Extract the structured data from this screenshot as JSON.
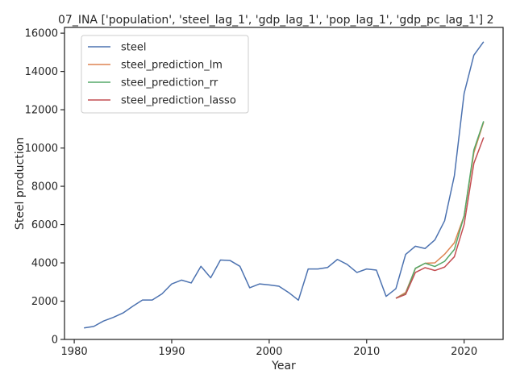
{
  "chart_data": {
    "type": "line",
    "title": "07_INA ['population', 'steel_lag_1', 'gdp_lag_1', 'pop_lag_1', 'gdp_pc_lag_1'] 2",
    "xlabel": "Year",
    "ylabel": "Steel production",
    "xlim": [
      1979,
      2024
    ],
    "ylim": [
      0,
      16300
    ],
    "xticks": [
      1980,
      1990,
      2000,
      2010,
      2020
    ],
    "yticks": [
      0,
      2000,
      4000,
      6000,
      8000,
      10000,
      12000,
      14000,
      16000
    ],
    "grid": false,
    "legend": "top-left",
    "series": [
      {
        "name": "steel",
        "color": "#4c72b0",
        "x": [
          1981,
          1982,
          1983,
          1984,
          1985,
          1986,
          1987,
          1988,
          1989,
          1990,
          1991,
          1992,
          1993,
          1994,
          1995,
          1996,
          1997,
          1998,
          1999,
          2000,
          2001,
          2002,
          2003,
          2004,
          2005,
          2006,
          2007,
          2008,
          2009,
          2010,
          2011,
          2012,
          2013,
          2014,
          2015,
          2016,
          2017,
          2018,
          2019,
          2020,
          2021,
          2022
        ],
        "y": [
          600,
          680,
          960,
          1150,
          1380,
          1730,
          2060,
          2060,
          2380,
          2900,
          3100,
          2950,
          3820,
          3220,
          4150,
          4120,
          3820,
          2700,
          2900,
          2850,
          2780,
          2450,
          2050,
          3680,
          3680,
          3760,
          4180,
          3920,
          3500,
          3680,
          3620,
          2250,
          2650,
          4440,
          4870,
          4750,
          5200,
          6200,
          8550,
          12850,
          14850,
          15550
        ]
      },
      {
        "name": "steel_prediction_lm",
        "color": "#dd8452",
        "x": [
          2013,
          2014,
          2015,
          2016,
          2017,
          2018,
          2019,
          2020,
          2021,
          2022
        ],
        "y": [
          2150,
          2450,
          3700,
          3980,
          4000,
          4450,
          5050,
          6450,
          9750,
          11350
        ]
      },
      {
        "name": "steel_prediction_rr",
        "color": "#55a868",
        "x": [
          2013,
          2014,
          2015,
          2016,
          2017,
          2018,
          2019,
          2020,
          2021,
          2022
        ],
        "y": [
          2150,
          2380,
          3720,
          3980,
          3810,
          4080,
          4700,
          6450,
          9900,
          11400
        ]
      },
      {
        "name": "steel_prediction_lasso",
        "color": "#c44e52",
        "x": [
          2013,
          2014,
          2015,
          2016,
          2017,
          2018,
          2019,
          2020,
          2021,
          2022
        ],
        "y": [
          2150,
          2350,
          3500,
          3750,
          3600,
          3780,
          4320,
          6000,
          9200,
          10550
        ]
      }
    ]
  }
}
